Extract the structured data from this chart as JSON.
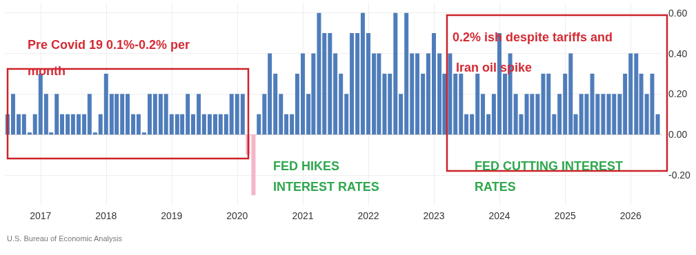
{
  "chart_data": {
    "type": "bar",
    "annotations": [
      "Pre Covid 19 0.1%-0.2% per month",
      "FED HIKES INTEREST RATES",
      "0.2% ish despite tariffs and Iran oil spike",
      "FED CUTTING INTEREST RATES",
      "U.S. Bureau of Economic Analysis"
    ],
    "x": [
      "2016-07",
      "2016-08",
      "2016-09",
      "2016-10",
      "2016-11",
      "2016-12",
      "2017-01",
      "2017-02",
      "2017-03",
      "2017-04",
      "2017-05",
      "2017-06",
      "2017-07",
      "2017-08",
      "2017-09",
      "2017-10",
      "2017-11",
      "2017-12",
      "2018-01",
      "2018-02",
      "2018-03",
      "2018-04",
      "2018-05",
      "2018-06",
      "2018-07",
      "2018-08",
      "2018-09",
      "2018-10",
      "2018-11",
      "2018-12",
      "2019-01",
      "2019-02",
      "2019-03",
      "2019-04",
      "2019-05",
      "2019-06",
      "2019-07",
      "2019-08",
      "2019-09",
      "2019-10",
      "2019-11",
      "2019-12",
      "2020-01",
      "2020-02",
      "2020-03",
      "2020-04",
      "2020-05",
      "2020-06",
      "2020-07",
      "2020-08",
      "2020-09",
      "2020-10",
      "2020-11",
      "2020-12",
      "2021-01",
      "2021-02",
      "2021-03",
      "2021-04",
      "2021-05",
      "2021-06",
      "2021-07",
      "2021-08",
      "2021-09",
      "2021-10",
      "2021-11",
      "2021-12",
      "2022-01",
      "2022-02",
      "2022-03",
      "2022-04",
      "2022-05",
      "2022-06",
      "2022-07",
      "2022-08",
      "2022-09",
      "2022-10",
      "2022-11",
      "2022-12",
      "2023-01",
      "2023-02",
      "2023-03",
      "2023-04",
      "2023-05",
      "2023-06",
      "2023-07",
      "2023-08",
      "2023-09",
      "2023-10",
      "2023-11",
      "2023-12",
      "2024-01",
      "2024-02",
      "2024-03",
      "2024-04",
      "2024-05",
      "2024-06",
      "2024-07",
      "2024-08",
      "2024-09",
      "2024-10",
      "2024-11",
      "2024-12",
      "2025-01",
      "2025-02",
      "2025-03",
      "2025-04",
      "2025-05",
      "2025-06",
      "2025-07",
      "2025-08",
      "2025-09",
      "2025-10",
      "2025-11",
      "2025-12",
      "2026-01",
      "2026-02",
      "2026-03",
      "2026-04",
      "2026-05",
      "2026-06"
    ],
    "values": [
      0.1,
      0.2,
      0.1,
      0.1,
      0.01,
      0.1,
      0.3,
      0.2,
      0.01,
      0.2,
      0.1,
      0.1,
      0.1,
      0.1,
      0.1,
      0.2,
      0.01,
      0.1,
      0.3,
      0.2,
      0.2,
      0.2,
      0.2,
      0.1,
      0.1,
      0.01,
      0.2,
      0.2,
      0.2,
      0.2,
      0.1,
      0.1,
      0.1,
      0.2,
      0.1,
      0.2,
      0.1,
      0.1,
      0.1,
      0.1,
      0.1,
      0.2,
      0.2,
      0.2,
      -0.1,
      -0.3,
      0.1,
      0.2,
      0.4,
      0.3,
      0.2,
      0.1,
      0.1,
      0.3,
      0.4,
      0.2,
      0.4,
      0.6,
      0.5,
      0.5,
      0.4,
      0.3,
      0.2,
      0.5,
      0.5,
      0.6,
      0.5,
      0.4,
      0.4,
      0.3,
      0.3,
      0.6,
      0.2,
      0.6,
      0.4,
      0.4,
      0.3,
      0.4,
      0.5,
      0.4,
      0.3,
      0.4,
      0.3,
      0.3,
      0.1,
      0.1,
      0.3,
      0.2,
      0.1,
      0.2,
      0.5,
      0.3,
      0.4,
      0.2,
      0.1,
      0.2,
      0.2,
      0.2,
      0.3,
      0.3,
      0.1,
      0.2,
      0.3,
      0.4,
      0.1,
      0.2,
      0.2,
      0.3,
      0.2,
      0.2,
      0.2,
      0.2,
      0.2,
      0.3,
      0.4,
      0.4,
      0.3,
      0.2,
      0.3,
      0.1
    ],
    "colors": [
      "#4f7dbb",
      "#4f7dbb",
      "#4f7dbb",
      "#4f7dbb",
      "#4f7dbb",
      "#4f7dbb",
      "#4f7dbb",
      "#4f7dbb",
      "#4f7dbb",
      "#4f7dbb",
      "#4f7dbb",
      "#4f7dbb",
      "#4f7dbb",
      "#4f7dbb",
      "#4f7dbb",
      "#4f7dbb",
      "#4f7dbb",
      "#4f7dbb",
      "#4f7dbb",
      "#4f7dbb",
      "#4f7dbb",
      "#4f7dbb",
      "#4f7dbb",
      "#4f7dbb",
      "#4f7dbb",
      "#4f7dbb",
      "#4f7dbb",
      "#4f7dbb",
      "#4f7dbb",
      "#4f7dbb",
      "#4f7dbb",
      "#4f7dbb",
      "#4f7dbb",
      "#4f7dbb",
      "#4f7dbb",
      "#4f7dbb",
      "#4f7dbb",
      "#4f7dbb",
      "#4f7dbb",
      "#4f7dbb",
      "#4f7dbb",
      "#4f7dbb",
      "#4f7dbb",
      "#4f7dbb",
      "#f5b5c8",
      "#f5b5c8",
      "#4f7dbb",
      "#4f7dbb",
      "#4f7dbb",
      "#4f7dbb",
      "#4f7dbb",
      "#4f7dbb",
      "#4f7dbb",
      "#4f7dbb",
      "#4f7dbb",
      "#4f7dbb",
      "#4f7dbb",
      "#4f7dbb",
      "#4f7dbb",
      "#4f7dbb",
      "#4f7dbb",
      "#4f7dbb",
      "#4f7dbb",
      "#4f7dbb",
      "#4f7dbb",
      "#4f7dbb",
      "#4f7dbb",
      "#4f7dbb",
      "#4f7dbb",
      "#4f7dbb",
      "#4f7dbb",
      "#4f7dbb",
      "#4f7dbb",
      "#4f7dbb",
      "#4f7dbb",
      "#4f7dbb",
      "#4f7dbb",
      "#4f7dbb",
      "#4f7dbb",
      "#4f7dbb",
      "#4f7dbb",
      "#4f7dbb",
      "#4f7dbb",
      "#4f7dbb",
      "#4f7dbb",
      "#4f7dbb",
      "#4f7dbb",
      "#4f7dbb",
      "#4f7dbb",
      "#4f7dbb",
      "#4f7dbb",
      "#4f7dbb",
      "#4f7dbb",
      "#4f7dbb",
      "#4f7dbb",
      "#4f7dbb",
      "#4f7dbb",
      "#4f7dbb",
      "#4f7dbb",
      "#4f7dbb",
      "#4f7dbb",
      "#4f7dbb",
      "#4f7dbb",
      "#4f7dbb",
      "#4f7dbb",
      "#4f7dbb",
      "#4f7dbb",
      "#4f7dbb",
      "#4f7dbb",
      "#4f7dbb",
      "#4f7dbb",
      "#4f7dbb",
      "#4f7dbb",
      "#4f7dbb",
      "#4f7dbb",
      "#4f7dbb",
      "#4f7dbb",
      "#4f7dbb",
      "#4f7dbb",
      "#4f7dbb"
    ],
    "xlim": [
      "2016-06-16",
      "2026-06-22"
    ],
    "xticks": [
      "2017",
      "2018",
      "2019",
      "2020",
      "2021",
      "2022",
      "2023",
      "2024",
      "2025",
      "2026"
    ],
    "ylim": [
      -0.35,
      0.65
    ],
    "yticks": [
      {
        "value": -0.2,
        "label": "-0.20"
      },
      {
        "value": 0,
        "label": "0.00"
      },
      {
        "value": 0.2,
        "label": "0.20"
      },
      {
        "value": 0.4,
        "label": "0.40"
      },
      {
        "value": 0.6,
        "label": "0.60"
      }
    ],
    "grid": true
  }
}
